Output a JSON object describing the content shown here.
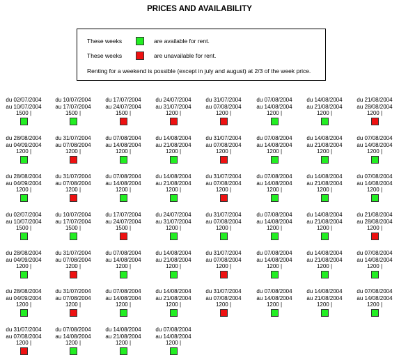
{
  "title": "PRICES AND AVAILABILITY",
  "colors": {
    "available": "#22ee22",
    "unavailable": "#ee1111"
  },
  "legend": {
    "rows": [
      {
        "left": "These weeks",
        "status": "available",
        "right": "are available for rent."
      },
      {
        "left": "These weeks",
        "status": "unavailable",
        "right": "are unavailable for rent."
      }
    ],
    "note": "Renting for a weekend is possible (except in july and august) at 2/3 of the week price."
  },
  "rows": [
    [
      {
        "from": "du 02/07/2004",
        "to": "au 10/07/2004",
        "price": "1500 |",
        "status": "available"
      },
      {
        "from": "du 10/07/2004",
        "to": "au 17/07/2004",
        "price": "1500 |",
        "status": "available"
      },
      {
        "from": "du 17/07/2004",
        "to": "au 24/07/2004",
        "price": "1500 |",
        "status": "unavailable"
      },
      {
        "from": "du 24/07/2004",
        "to": "au 31/07/2004",
        "price": "1200 |",
        "status": "unavailable"
      },
      {
        "from": "du 31/07/2004",
        "to": "au 07/08/2004",
        "price": "1200 |",
        "status": "unavailable"
      },
      {
        "from": "du 07/08/2004",
        "to": "au 14/08/2004",
        "price": "1200 |",
        "status": "available"
      },
      {
        "from": "du 14/08/2004",
        "to": "au 21/08/2004",
        "price": "1200 |",
        "status": "available"
      },
      {
        "from": "du 21/08/2004",
        "to": "au 28/08/2004",
        "price": "1200 |",
        "status": "unavailable"
      }
    ],
    [
      {
        "from": "du 28/08/2004",
        "to": "au 04/09/2004",
        "price": "1200 |",
        "status": "available"
      },
      {
        "from": "du 31/07/2004",
        "to": "au 07/08/2004",
        "price": "1200 |",
        "status": "unavailable"
      },
      {
        "from": "du 07/08/2004",
        "to": "au 14/08/2004",
        "price": "1200 |",
        "status": "available"
      },
      {
        "from": "du 14/08/2004",
        "to": "au 21/08/2004",
        "price": "1200 |",
        "status": "available"
      },
      {
        "from": "du 31/07/2004",
        "to": "au 07/08/2004",
        "price": "1200 |",
        "status": "unavailable"
      },
      {
        "from": "du 07/08/2004",
        "to": "au 14/08/2004",
        "price": "1200 |",
        "status": "available"
      },
      {
        "from": "du 14/08/2004",
        "to": "au 21/08/2004",
        "price": "1200 |",
        "status": "available"
      },
      {
        "from": "du 07/08/2004",
        "to": "au 14/08/2004",
        "price": "1200 |",
        "status": "available"
      }
    ],
    [
      {
        "from": "du 28/08/2004",
        "to": "au 04/09/2004",
        "price": "1200 |",
        "status": "available"
      },
      {
        "from": "du 31/07/2004",
        "to": "au 07/08/2004",
        "price": "1200 |",
        "status": "unavailable"
      },
      {
        "from": "du 07/08/2004",
        "to": "au 14/08/2004",
        "price": "1200 |",
        "status": "available"
      },
      {
        "from": "du 14/08/2004",
        "to": "au 21/08/2004",
        "price": "1200 |",
        "status": "available"
      },
      {
        "from": "du 31/07/2004",
        "to": "au 07/08/2004",
        "price": "1200 |",
        "status": "unavailable"
      },
      {
        "from": "du 07/08/2004",
        "to": "au 14/08/2004",
        "price": "1200 |",
        "status": "available"
      },
      {
        "from": "du 14/08/2004",
        "to": "au 21/08/2004",
        "price": "1200 |",
        "status": "available"
      },
      {
        "from": "du 07/08/2004",
        "to": "au 14/08/2004",
        "price": "1200 |",
        "status": "available"
      }
    ],
    [
      {
        "from": "du 02/07/2004",
        "to": "au 10/07/2004",
        "price": "1500 |",
        "status": "available"
      },
      {
        "from": "du 10/07/2004",
        "to": "au 17/07/2004",
        "price": "1500 |",
        "status": "available"
      },
      {
        "from": "du 17/07/2004",
        "to": "au 24/07/2004",
        "price": "1500 |",
        "status": "unavailable"
      },
      {
        "from": "du 24/07/2004",
        "to": "au 31/07/2004",
        "price": "1200 |",
        "status": "available"
      },
      {
        "from": "du 31/07/2004",
        "to": "au 07/08/2004",
        "price": "1200 |",
        "status": "available"
      },
      {
        "from": "du 07/08/2004",
        "to": "au 14/08/2004",
        "price": "1200 |",
        "status": "available"
      },
      {
        "from": "du 14/08/2004",
        "to": "au 21/08/2004",
        "price": "1200 |",
        "status": "available"
      },
      {
        "from": "du 21/08/2004",
        "to": "au 28/08/2004",
        "price": "1200 |",
        "status": "unavailable"
      }
    ],
    [
      {
        "from": "du 28/08/2004",
        "to": "au 04/09/2004",
        "price": "1200 |",
        "status": "available"
      },
      {
        "from": "du 31/07/2004",
        "to": "au 07/08/2004",
        "price": "1200 |",
        "status": "unavailable"
      },
      {
        "from": "du 07/08/2004",
        "to": "au 14/08/2004",
        "price": "1200 |",
        "status": "available"
      },
      {
        "from": "du 14/08/2004",
        "to": "au 21/08/2004",
        "price": "1200 |",
        "status": "available"
      },
      {
        "from": "du 31/07/2004",
        "to": "au 07/08/2004",
        "price": "1200 |",
        "status": "unavailable"
      },
      {
        "from": "du 07/08/2004",
        "to": "au 14/08/2004",
        "price": "1200 |",
        "status": "available"
      },
      {
        "from": "du 14/08/2004",
        "to": "au 21/08/2004",
        "price": "1200 |",
        "status": "available"
      },
      {
        "from": "du 07/08/2004",
        "to": "au 14/08/2004",
        "price": "1200 |",
        "status": "available"
      }
    ],
    [
      {
        "from": "du 28/08/2004",
        "to": "au 04/09/2004",
        "price": "1200 |",
        "status": "available"
      },
      {
        "from": "du 31/07/2004",
        "to": "au 07/08/2004",
        "price": "1200 |",
        "status": "unavailable"
      },
      {
        "from": "du 07/08/2004",
        "to": "au 14/08/2004",
        "price": "1200 |",
        "status": "available"
      },
      {
        "from": "du 14/08/2004",
        "to": "au 21/08/2004",
        "price": "1200 |",
        "status": "available"
      },
      {
        "from": "du 31/07/2004",
        "to": "au 07/08/2004",
        "price": "1200 |",
        "status": "unavailable"
      },
      {
        "from": "du 07/08/2004",
        "to": "au 14/08/2004",
        "price": "1200 |",
        "status": "available"
      },
      {
        "from": "du 14/08/2004",
        "to": "au 21/08/2004",
        "price": "1200 |",
        "status": "available"
      },
      {
        "from": "du 07/08/2004",
        "to": "au 14/08/2004",
        "price": "1200 |",
        "status": "available"
      }
    ],
    [
      {
        "from": "du 31/07/2004",
        "to": "au 07/08/2004",
        "price": "1200 |",
        "status": "unavailable"
      },
      {
        "from": "du 07/08/2004",
        "to": "au 14/08/2004",
        "price": "1200 |",
        "status": "available"
      },
      {
        "from": "du 14/08/2004",
        "to": "au 21/08/2004",
        "price": "1200 |",
        "status": "available"
      },
      {
        "from": "du 07/08/2004",
        "to": "au 14/08/2004",
        "price": "1200 |",
        "status": "available"
      }
    ]
  ]
}
